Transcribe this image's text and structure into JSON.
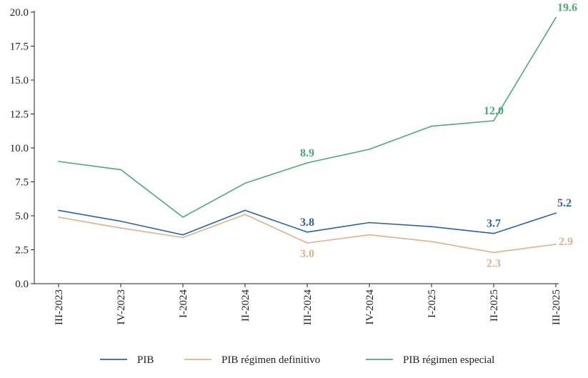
{
  "chart_data": {
    "type": "line",
    "title": "",
    "xlabel": "",
    "ylabel": "",
    "categories": [
      "III-2023",
      "IV-2023",
      "I-2024",
      "II-2024",
      "III-2024",
      "IV-2024",
      "I-2025",
      "II-2025",
      "III-2025"
    ],
    "ylim": [
      0,
      20
    ],
    "yticks": [
      "0.0",
      "2.5",
      "5.0",
      "7.5",
      "10.0",
      "12.5",
      "15.0",
      "17.5",
      "20.0"
    ],
    "series": [
      {
        "name": "PIB",
        "color": "#2b62a6",
        "values": [
          5.4,
          4.6,
          3.6,
          5.4,
          3.8,
          4.5,
          4.2,
          3.7,
          5.2
        ],
        "labels": [
          {
            "index": 4,
            "text": "3.8",
            "pos": "above"
          },
          {
            "index": 7,
            "text": "3.7",
            "pos": "above"
          },
          {
            "index": 8,
            "text": "5.2",
            "pos": "above"
          }
        ]
      },
      {
        "name": "PIB régimen definitivo",
        "color": "#dfb08e",
        "values": [
          4.9,
          4.1,
          3.4,
          5.1,
          3.0,
          3.6,
          3.1,
          2.3,
          2.9
        ],
        "labels": [
          {
            "index": 4,
            "text": "3.0",
            "pos": "below"
          },
          {
            "index": 7,
            "text": "2.3",
            "pos": "below"
          },
          {
            "index": 8,
            "text": "2.9",
            "pos": "right"
          }
        ]
      },
      {
        "name": "PIB régimen especial",
        "color": "#4daa73",
        "values": [
          9.0,
          8.4,
          4.9,
          7.4,
          8.9,
          9.9,
          11.6,
          12.0,
          19.6
        ],
        "labels": [
          {
            "index": 4,
            "text": "8.9",
            "pos": "above"
          },
          {
            "index": 7,
            "text": "12.0",
            "pos": "above"
          },
          {
            "index": 8,
            "text": "19.6",
            "pos": "above"
          }
        ]
      }
    ],
    "legend": "bottom",
    "grid": false
  }
}
